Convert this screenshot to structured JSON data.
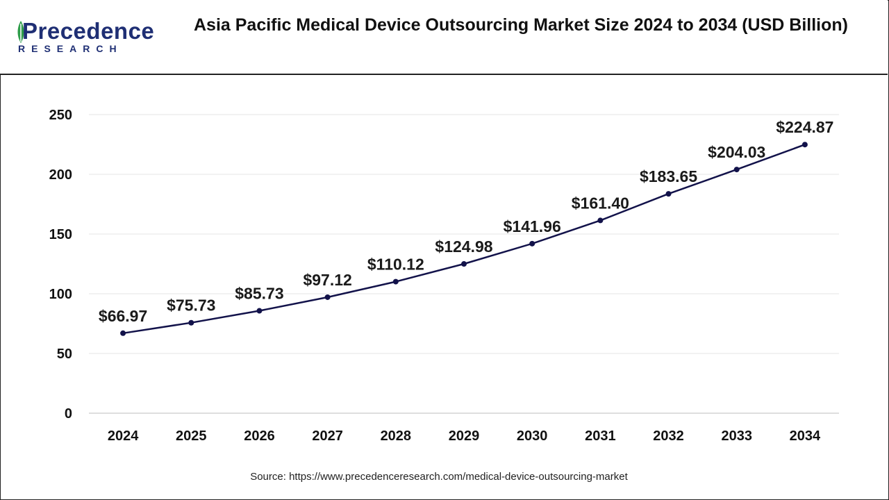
{
  "brand": {
    "name": "Precedence",
    "subtitle": "RESEARCH",
    "logo_color": "#1f2f74",
    "accent_color": "#2e9d4a"
  },
  "chart_data": {
    "type": "line",
    "title": "Asia Pacific Medical Device Outsourcing Market Size 2024 to 2034 (USD Billion)",
    "categories": [
      "2024",
      "2025",
      "2026",
      "2027",
      "2028",
      "2029",
      "2030",
      "2031",
      "2032",
      "2033",
      "2034"
    ],
    "values": [
      66.97,
      75.73,
      85.73,
      97.12,
      110.12,
      124.98,
      141.96,
      161.4,
      183.65,
      204.03,
      224.87
    ],
    "data_labels": [
      "$66.97",
      "$75.73",
      "$85.73",
      "$97.12",
      "$110.12",
      "$124.98",
      "$141.96",
      "$161.40",
      "$183.65",
      "$204.03",
      "$224.87"
    ],
    "y_ticks": [
      0,
      50,
      100,
      150,
      200,
      250
    ],
    "ylim": [
      0,
      250
    ],
    "xlabel": "",
    "ylabel": "",
    "grid": true,
    "line_color": "#12124a",
    "grid_color": "#e6e6e6"
  },
  "source": "Source: https://www.precedenceresearch.com/medical-device-outsourcing-market"
}
